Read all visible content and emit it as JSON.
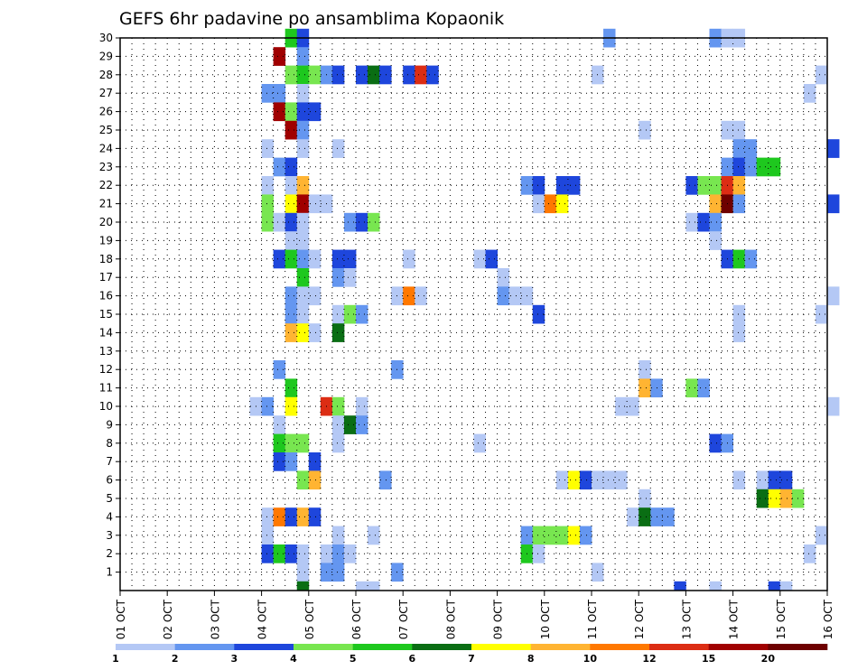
{
  "chart_data": {
    "type": "heatmap",
    "title": "GEFS 6hr padavine po ansamblima Kopaonik",
    "xlabel": "",
    "ylabel": "",
    "x_tick_labels": [
      "01 OCT",
      "02 OCT",
      "03 OCT",
      "04 OCT",
      "05 OCT",
      "06 OCT",
      "07 OCT",
      "08 OCT",
      "09 OCT",
      "10 OCT",
      "11 OCT",
      "12 OCT",
      "13 OCT",
      "14 OCT",
      "15 OCT",
      "16 OCT"
    ],
    "y_tick_labels": [
      "1",
      "2",
      "3",
      "4",
      "5",
      "6",
      "7",
      "8",
      "9",
      "10",
      "11",
      "12",
      "13",
      "14",
      "15",
      "16",
      "17",
      "18",
      "19",
      "20",
      "21",
      "22",
      "23",
      "24",
      "25",
      "26",
      "27",
      "28",
      "29",
      "30"
    ],
    "x_range_days": [
      1,
      16
    ],
    "y_range": [
      0,
      30
    ],
    "grid": true,
    "colorbar": {
      "labels": [
        "1",
        "2",
        "3",
        "4",
        "5",
        "6",
        "7",
        "8",
        "10",
        "12",
        "15",
        "20"
      ],
      "colors": [
        "#b4c8f5",
        "#6496f0",
        "#1e46dc",
        "#78e650",
        "#1ec81e",
        "#0a6e14",
        "#ffff00",
        "#ffb432",
        "#ff7800",
        "#dc2d14",
        "#a00000",
        "#6e0000"
      ]
    },
    "cells": [
      {
        "m": 30,
        "d": 4.5,
        "c": 5
      },
      {
        "m": 30,
        "d": 4.75,
        "c": 3
      },
      {
        "m": 30,
        "d": 11.25,
        "c": 2
      },
      {
        "m": 30,
        "d": 13.5,
        "c": 2
      },
      {
        "m": 30,
        "d": 13.75,
        "c": 1
      },
      {
        "m": 30,
        "d": 14,
        "c": 1
      },
      {
        "m": 29,
        "d": 4.25,
        "c": 11
      },
      {
        "m": 29,
        "d": 4.75,
        "c": 2
      },
      {
        "m": 28,
        "d": 4.5,
        "c": 4
      },
      {
        "m": 28,
        "d": 4.75,
        "c": 5
      },
      {
        "m": 28,
        "d": 5,
        "c": 4
      },
      {
        "m": 28,
        "d": 5.25,
        "c": 2
      },
      {
        "m": 28,
        "d": 5.5,
        "c": 3
      },
      {
        "m": 28,
        "d": 6,
        "c": 3
      },
      {
        "m": 28,
        "d": 6.25,
        "c": 6
      },
      {
        "m": 28,
        "d": 6.5,
        "c": 3
      },
      {
        "m": 28,
        "d": 7,
        "c": 3
      },
      {
        "m": 28,
        "d": 7.25,
        "c": 10
      },
      {
        "m": 28,
        "d": 7.5,
        "c": 3
      },
      {
        "m": 28,
        "d": 11,
        "c": 1
      },
      {
        "m": 28,
        "d": 15.75,
        "c": 1
      },
      {
        "m": 27,
        "d": 4,
        "c": 2
      },
      {
        "m": 27,
        "d": 4.25,
        "c": 2
      },
      {
        "m": 27,
        "d": 4.75,
        "c": 1
      },
      {
        "m": 27,
        "d": 15.5,
        "c": 1
      },
      {
        "m": 26,
        "d": 4.25,
        "c": 11
      },
      {
        "m": 26,
        "d": 4.5,
        "c": 4
      },
      {
        "m": 26,
        "d": 4.75,
        "c": 3
      },
      {
        "m": 26,
        "d": 5,
        "c": 3
      },
      {
        "m": 25,
        "d": 4.5,
        "c": 11
      },
      {
        "m": 25,
        "d": 4.75,
        "c": 2
      },
      {
        "m": 25,
        "d": 12,
        "c": 1
      },
      {
        "m": 25,
        "d": 13.75,
        "c": 1
      },
      {
        "m": 25,
        "d": 14,
        "c": 1
      },
      {
        "m": 24,
        "d": 4,
        "c": 1
      },
      {
        "m": 24,
        "d": 4.75,
        "c": 1
      },
      {
        "m": 24,
        "d": 5.5,
        "c": 1
      },
      {
        "m": 24,
        "d": 14,
        "c": 2
      },
      {
        "m": 24,
        "d": 14.25,
        "c": 2
      },
      {
        "m": 24,
        "d": 16,
        "c": 3
      },
      {
        "m": 23,
        "d": 4.25,
        "c": 2
      },
      {
        "m": 23,
        "d": 4.5,
        "c": 3
      },
      {
        "m": 23,
        "d": 13.75,
        "c": 2
      },
      {
        "m": 23,
        "d": 14,
        "c": 3
      },
      {
        "m": 23,
        "d": 14.25,
        "c": 2
      },
      {
        "m": 23,
        "d": 14.5,
        "c": 5
      },
      {
        "m": 23,
        "d": 14.75,
        "c": 5
      },
      {
        "m": 22,
        "d": 4,
        "c": 1
      },
      {
        "m": 22,
        "d": 4.5,
        "c": 1
      },
      {
        "m": 22,
        "d": 4.75,
        "c": 8
      },
      {
        "m": 22,
        "d": 9.5,
        "c": 2
      },
      {
        "m": 22,
        "d": 9.75,
        "c": 3
      },
      {
        "m": 22,
        "d": 10.25,
        "c": 3
      },
      {
        "m": 22,
        "d": 10.5,
        "c": 3
      },
      {
        "m": 22,
        "d": 13,
        "c": 3
      },
      {
        "m": 22,
        "d": 13.25,
        "c": 4
      },
      {
        "m": 22,
        "d": 13.5,
        "c": 4
      },
      {
        "m": 22,
        "d": 13.75,
        "c": 10
      },
      {
        "m": 22,
        "d": 14,
        "c": 8
      },
      {
        "m": 21,
        "d": 4,
        "c": 4
      },
      {
        "m": 21,
        "d": 4.5,
        "c": 7
      },
      {
        "m": 21,
        "d": 4.75,
        "c": 11
      },
      {
        "m": 21,
        "d": 5,
        "c": 1
      },
      {
        "m": 21,
        "d": 5.25,
        "c": 1
      },
      {
        "m": 21,
        "d": 9.75,
        "c": 1
      },
      {
        "m": 21,
        "d": 10,
        "c": 9
      },
      {
        "m": 21,
        "d": 10.25,
        "c": 7
      },
      {
        "m": 21,
        "d": 13.5,
        "c": 8
      },
      {
        "m": 21,
        "d": 13.75,
        "c": 12
      },
      {
        "m": 21,
        "d": 14,
        "c": 2
      },
      {
        "m": 21,
        "d": 16,
        "c": 3
      },
      {
        "m": 20,
        "d": 4,
        "c": 4
      },
      {
        "m": 20,
        "d": 4.25,
        "c": 1
      },
      {
        "m": 20,
        "d": 4.5,
        "c": 3
      },
      {
        "m": 20,
        "d": 4.75,
        "c": 1
      },
      {
        "m": 20,
        "d": 5.75,
        "c": 2
      },
      {
        "m": 20,
        "d": 6,
        "c": 3
      },
      {
        "m": 20,
        "d": 6.25,
        "c": 4
      },
      {
        "m": 20,
        "d": 13,
        "c": 1
      },
      {
        "m": 20,
        "d": 13.25,
        "c": 3
      },
      {
        "m": 20,
        "d": 13.5,
        "c": 2
      },
      {
        "m": 19,
        "d": 4.5,
        "c": 1
      },
      {
        "m": 19,
        "d": 4.75,
        "c": 1
      },
      {
        "m": 19,
        "d": 13.5,
        "c": 1
      },
      {
        "m": 18,
        "d": 4.25,
        "c": 3
      },
      {
        "m": 18,
        "d": 4.5,
        "c": 5
      },
      {
        "m": 18,
        "d": 4.75,
        "c": 2
      },
      {
        "m": 18,
        "d": 5,
        "c": 1
      },
      {
        "m": 18,
        "d": 5.5,
        "c": 3
      },
      {
        "m": 18,
        "d": 5.75,
        "c": 3
      },
      {
        "m": 18,
        "d": 7,
        "c": 1
      },
      {
        "m": 18,
        "d": 8.5,
        "c": 1
      },
      {
        "m": 18,
        "d": 8.75,
        "c": 3
      },
      {
        "m": 18,
        "d": 13.75,
        "c": 3
      },
      {
        "m": 18,
        "d": 14,
        "c": 5
      },
      {
        "m": 18,
        "d": 14.25,
        "c": 2
      },
      {
        "m": 17,
        "d": 4.75,
        "c": 5
      },
      {
        "m": 17,
        "d": 5.5,
        "c": 2
      },
      {
        "m": 17,
        "d": 5.75,
        "c": 1
      },
      {
        "m": 17,
        "d": 9,
        "c": 1
      },
      {
        "m": 16,
        "d": 4.5,
        "c": 2
      },
      {
        "m": 16,
        "d": 4.75,
        "c": 1
      },
      {
        "m": 16,
        "d": 5,
        "c": 1
      },
      {
        "m": 16,
        "d": 6.75,
        "c": 1
      },
      {
        "m": 16,
        "d": 7,
        "c": 9
      },
      {
        "m": 16,
        "d": 7.25,
        "c": 1
      },
      {
        "m": 16,
        "d": 9,
        "c": 2
      },
      {
        "m": 16,
        "d": 9.25,
        "c": 1
      },
      {
        "m": 16,
        "d": 9.5,
        "c": 1
      },
      {
        "m": 16,
        "d": 16,
        "c": 1
      },
      {
        "m": 15,
        "d": 4.5,
        "c": 2
      },
      {
        "m": 15,
        "d": 4.75,
        "c": 1
      },
      {
        "m": 15,
        "d": 5.5,
        "c": 1
      },
      {
        "m": 15,
        "d": 5.75,
        "c": 4
      },
      {
        "m": 15,
        "d": 6,
        "c": 2
      },
      {
        "m": 15,
        "d": 9.75,
        "c": 3
      },
      {
        "m": 15,
        "d": 14,
        "c": 1
      },
      {
        "m": 15,
        "d": 15.75,
        "c": 1
      },
      {
        "m": 14,
        "d": 4.5,
        "c": 8
      },
      {
        "m": 14,
        "d": 4.75,
        "c": 7
      },
      {
        "m": 14,
        "d": 5,
        "c": 1
      },
      {
        "m": 14,
        "d": 5.5,
        "c": 6
      },
      {
        "m": 14,
        "d": 14,
        "c": 1
      },
      {
        "m": 12,
        "d": 4.25,
        "c": 2
      },
      {
        "m": 12,
        "d": 6.75,
        "c": 2
      },
      {
        "m": 12,
        "d": 12,
        "c": 1
      },
      {
        "m": 11,
        "d": 4.5,
        "c": 5
      },
      {
        "m": 11,
        "d": 12,
        "c": 8
      },
      {
        "m": 11,
        "d": 12.25,
        "c": 2
      },
      {
        "m": 11,
        "d": 13,
        "c": 4
      },
      {
        "m": 11,
        "d": 13.25,
        "c": 2
      },
      {
        "m": 10,
        "d": 3.75,
        "c": 1
      },
      {
        "m": 10,
        "d": 4,
        "c": 2
      },
      {
        "m": 10,
        "d": 4.5,
        "c": 7
      },
      {
        "m": 10,
        "d": 5.25,
        "c": 10
      },
      {
        "m": 10,
        "d": 5.5,
        "c": 4
      },
      {
        "m": 10,
        "d": 6,
        "c": 1
      },
      {
        "m": 10,
        "d": 11.5,
        "c": 1
      },
      {
        "m": 10,
        "d": 11.75,
        "c": 1
      },
      {
        "m": 10,
        "d": 16,
        "c": 1
      },
      {
        "m": 9,
        "d": 4.25,
        "c": 1
      },
      {
        "m": 9,
        "d": 5.5,
        "c": 1
      },
      {
        "m": 9,
        "d": 5.75,
        "c": 6
      },
      {
        "m": 9,
        "d": 6,
        "c": 2
      },
      {
        "m": 8,
        "d": 4.25,
        "c": 5
      },
      {
        "m": 8,
        "d": 4.5,
        "c": 4
      },
      {
        "m": 8,
        "d": 4.75,
        "c": 4
      },
      {
        "m": 8,
        "d": 5.5,
        "c": 1
      },
      {
        "m": 8,
        "d": 8.5,
        "c": 1
      },
      {
        "m": 8,
        "d": 13.5,
        "c": 3
      },
      {
        "m": 8,
        "d": 13.75,
        "c": 2
      },
      {
        "m": 7,
        "d": 4.25,
        "c": 3
      },
      {
        "m": 7,
        "d": 4.5,
        "c": 2
      },
      {
        "m": 7,
        "d": 5,
        "c": 3
      },
      {
        "m": 6,
        "d": 4.75,
        "c": 4
      },
      {
        "m": 6,
        "d": 5,
        "c": 8
      },
      {
        "m": 6,
        "d": 6.5,
        "c": 2
      },
      {
        "m": 6,
        "d": 10.25,
        "c": 1
      },
      {
        "m": 6,
        "d": 10.5,
        "c": 7
      },
      {
        "m": 6,
        "d": 10.75,
        "c": 3
      },
      {
        "m": 6,
        "d": 11,
        "c": 1
      },
      {
        "m": 6,
        "d": 11.25,
        "c": 1
      },
      {
        "m": 6,
        "d": 11.5,
        "c": 1
      },
      {
        "m": 6,
        "d": 14,
        "c": 1
      },
      {
        "m": 6,
        "d": 14.5,
        "c": 1
      },
      {
        "m": 6,
        "d": 14.75,
        "c": 3
      },
      {
        "m": 6,
        "d": 15,
        "c": 3
      },
      {
        "m": 5,
        "d": 12,
        "c": 1
      },
      {
        "m": 5,
        "d": 14.5,
        "c": 6
      },
      {
        "m": 5,
        "d": 14.75,
        "c": 7
      },
      {
        "m": 5,
        "d": 15,
        "c": 8
      },
      {
        "m": 5,
        "d": 15.25,
        "c": 4
      },
      {
        "m": 4,
        "d": 4,
        "c": 1
      },
      {
        "m": 4,
        "d": 4.25,
        "c": 9
      },
      {
        "m": 4,
        "d": 4.5,
        "c": 3
      },
      {
        "m": 4,
        "d": 4.75,
        "c": 8
      },
      {
        "m": 4,
        "d": 5,
        "c": 3
      },
      {
        "m": 4,
        "d": 11.75,
        "c": 1
      },
      {
        "m": 4,
        "d": 12,
        "c": 6
      },
      {
        "m": 4,
        "d": 12.25,
        "c": 2
      },
      {
        "m": 4,
        "d": 12.5,
        "c": 2
      },
      {
        "m": 3,
        "d": 4,
        "c": 1
      },
      {
        "m": 3,
        "d": 5.5,
        "c": 1
      },
      {
        "m": 3,
        "d": 6.25,
        "c": 1
      },
      {
        "m": 3,
        "d": 9.5,
        "c": 2
      },
      {
        "m": 3,
        "d": 9.75,
        "c": 4
      },
      {
        "m": 3,
        "d": 10,
        "c": 4
      },
      {
        "m": 3,
        "d": 10.25,
        "c": 4
      },
      {
        "m": 3,
        "d": 10.5,
        "c": 7
      },
      {
        "m": 3,
        "d": 10.75,
        "c": 2
      },
      {
        "m": 3,
        "d": 15.75,
        "c": 1
      },
      {
        "m": 2,
        "d": 4,
        "c": 3
      },
      {
        "m": 2,
        "d": 4.25,
        "c": 5
      },
      {
        "m": 2,
        "d": 4.5,
        "c": 3
      },
      {
        "m": 2,
        "d": 4.75,
        "c": 1
      },
      {
        "m": 2,
        "d": 5.25,
        "c": 1
      },
      {
        "m": 2,
        "d": 5.5,
        "c": 2
      },
      {
        "m": 2,
        "d": 5.75,
        "c": 1
      },
      {
        "m": 2,
        "d": 9.5,
        "c": 5
      },
      {
        "m": 2,
        "d": 9.75,
        "c": 1
      },
      {
        "m": 2,
        "d": 15.5,
        "c": 1
      },
      {
        "m": 1,
        "d": 4.75,
        "c": 1
      },
      {
        "m": 1,
        "d": 5.25,
        "c": 2
      },
      {
        "m": 1,
        "d": 5.5,
        "c": 2
      },
      {
        "m": 1,
        "d": 6.75,
        "c": 2
      },
      {
        "m": 1,
        "d": 11,
        "c": 1
      },
      {
        "m": 0,
        "d": 4.75,
        "c": 6
      },
      {
        "m": 0,
        "d": 6,
        "c": 1
      },
      {
        "m": 0,
        "d": 6.25,
        "c": 1
      },
      {
        "m": 0,
        "d": 12.75,
        "c": 3
      },
      {
        "m": 0,
        "d": 13.5,
        "c": 1
      },
      {
        "m": 0,
        "d": 14.75,
        "c": 3
      },
      {
        "m": 0,
        "d": 15,
        "c": 1
      }
    ]
  }
}
